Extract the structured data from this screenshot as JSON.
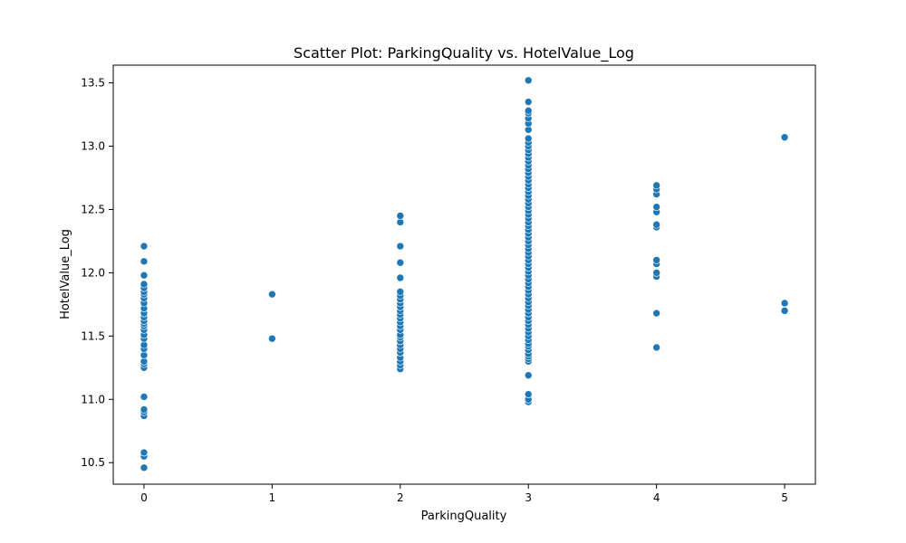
{
  "chart_data": {
    "type": "scatter",
    "title": "Scatter Plot: ParkingQuality vs. HotelValue_Log",
    "xlabel": "ParkingQuality",
    "ylabel": "HotelValue_Log",
    "xlim": [
      -0.24,
      5.24
    ],
    "ylim": [
      10.33,
      13.64
    ],
    "xticks": [
      0,
      1,
      2,
      3,
      4,
      5
    ],
    "xtick_labels": [
      "0",
      "1",
      "2",
      "3",
      "4",
      "5"
    ],
    "yticks": [
      10.5,
      11.0,
      11.5,
      12.0,
      12.5,
      13.0,
      13.5
    ],
    "ytick_labels": [
      "10.5",
      "11.0",
      "11.5",
      "12.0",
      "12.5",
      "13.0",
      "13.5"
    ],
    "grid": false,
    "marker_color": "#1f77b4",
    "points": [
      {
        "x": 0,
        "y": [
          10.46,
          10.55,
          10.58,
          10.87,
          10.9,
          10.92,
          11.02,
          11.25,
          11.28,
          11.3,
          11.35,
          11.4,
          11.43,
          11.48,
          11.51,
          11.55,
          11.58,
          11.6,
          11.62,
          11.65,
          11.68,
          11.72,
          11.76,
          11.8,
          11.83,
          11.85,
          11.88,
          11.91,
          11.98,
          12.09,
          12.21
        ]
      },
      {
        "x": 1,
        "y": [
          11.48,
          11.83
        ]
      },
      {
        "x": 2,
        "y": [
          11.24,
          11.27,
          11.3,
          11.33,
          11.37,
          11.4,
          11.43,
          11.46,
          11.49,
          11.51,
          11.55,
          11.58,
          11.61,
          11.64,
          11.67,
          11.7,
          11.73,
          11.76,
          11.79,
          11.82,
          11.85,
          11.96,
          12.08,
          12.21,
          12.4,
          12.45
        ]
      },
      {
        "x": 3,
        "y": [
          10.98,
          11.0,
          11.04,
          11.19,
          11.3,
          11.32,
          11.34,
          11.36,
          11.39,
          11.42,
          11.44,
          11.47,
          11.5,
          11.53,
          11.56,
          11.59,
          11.62,
          11.65,
          11.68,
          11.71,
          11.74,
          11.77,
          11.8,
          11.83,
          11.86,
          11.89,
          11.92,
          11.95,
          11.98,
          12.01,
          12.04,
          12.07,
          12.1,
          12.13,
          12.16,
          12.19,
          12.22,
          12.25,
          12.28,
          12.31,
          12.34,
          12.37,
          12.4,
          12.43,
          12.46,
          12.49,
          12.52,
          12.55,
          12.58,
          12.61,
          12.64,
          12.67,
          12.7,
          12.73,
          12.76,
          12.79,
          12.82,
          12.85,
          12.88,
          12.91,
          12.94,
          12.97,
          13.0,
          13.03,
          13.06,
          13.13,
          13.18,
          13.22,
          13.26,
          13.28,
          13.35,
          13.52
        ]
      },
      {
        "x": 4,
        "y": [
          11.41,
          11.68,
          11.97,
          12.0,
          12.07,
          12.1,
          12.36,
          12.38,
          12.48,
          12.52,
          12.62,
          12.66,
          12.69
        ]
      },
      {
        "x": 5,
        "y": [
          11.7,
          11.76,
          13.07
        ]
      }
    ]
  }
}
